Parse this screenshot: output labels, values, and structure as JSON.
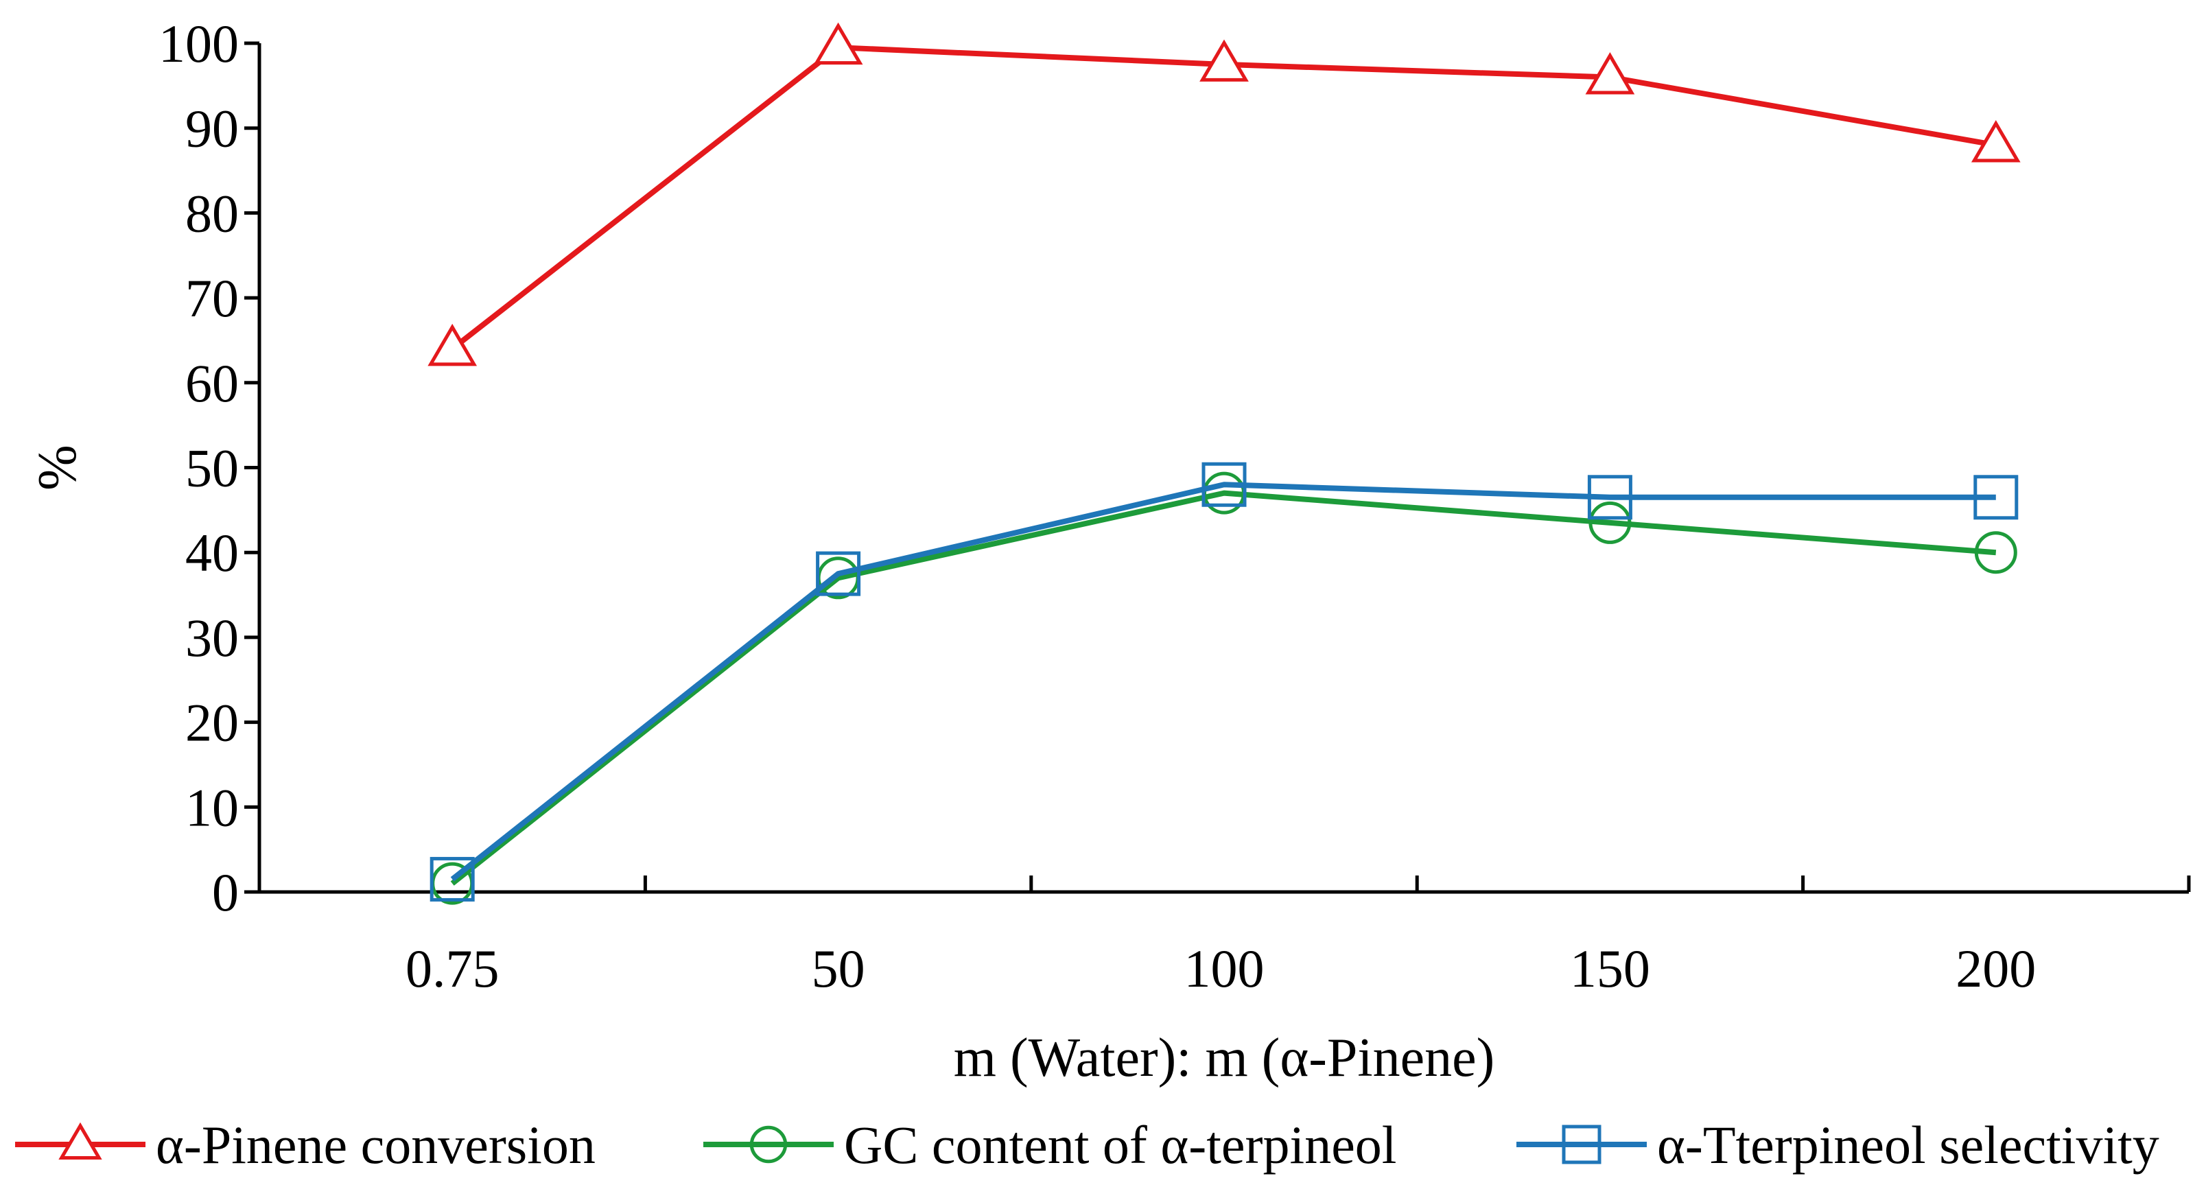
{
  "chart_data": {
    "type": "line",
    "title": "",
    "xlabel": "m (Water): m (α-Pinene)",
    "ylabel": "%",
    "categories": [
      "0.75",
      "50",
      "100",
      "150",
      "200"
    ],
    "ylim": [
      0,
      100
    ],
    "yticks": [
      "0",
      "10",
      "20",
      "30",
      "40",
      "50",
      "60",
      "70",
      "80",
      "90",
      "100"
    ],
    "grid": false,
    "legend_position": "bottom",
    "series": [
      {
        "name": "α-Pinene conversion",
        "values": [
          64,
          99.5,
          97.5,
          96,
          88
        ],
        "color": "#e4191c",
        "marker": "triangle"
      },
      {
        "name": "GC content of α-terpineol",
        "values": [
          1,
          37,
          47,
          43.5,
          40
        ],
        "color": "#1d9b3a",
        "marker": "circle"
      },
      {
        "name": "α-Tterpineol selectivity",
        "values": [
          1.5,
          37.5,
          48,
          46.5,
          46.5
        ],
        "color": "#1f76b8",
        "marker": "square"
      }
    ]
  }
}
